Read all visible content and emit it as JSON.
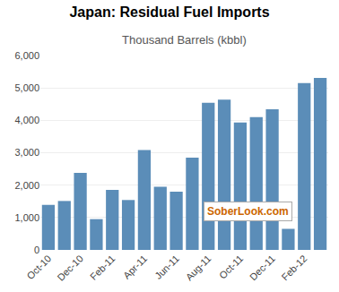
{
  "chart_data": {
    "type": "bar",
    "title": "Japan: Residual Fuel Imports",
    "subtitle": "Thousand Barrels (kbbl)",
    "annotations": [
      "SoberLook.com"
    ],
    "categories": [
      "Oct-10",
      null,
      "Dec-10",
      null,
      "Feb-11",
      null,
      "Apr-11",
      null,
      "Jun-11",
      null,
      "Aug-11",
      null,
      "Oct-11",
      null,
      "Dec-11",
      null,
      "Feb-12",
      null
    ],
    "values": [
      1390,
      1510,
      2380,
      950,
      1850,
      1540,
      3080,
      1950,
      1800,
      2850,
      4540,
      4640,
      3930,
      4100,
      4340,
      650,
      5150,
      5310
    ],
    "color": "#5b8db8",
    "ylim": [
      0,
      6000
    ],
    "yticks": [
      0,
      {
        "value": 1000,
        "label": "1,000"
      },
      {
        "value": 2000,
        "label": "2,000"
      },
      {
        "value": 3000,
        "label": "3,000"
      },
      {
        "value": 4000,
        "label": "4,000"
      },
      {
        "value": 5000,
        "label": "5,000"
      },
      {
        "value": 6000,
        "label": "6,000"
      }
    ],
    "grid": true
  }
}
